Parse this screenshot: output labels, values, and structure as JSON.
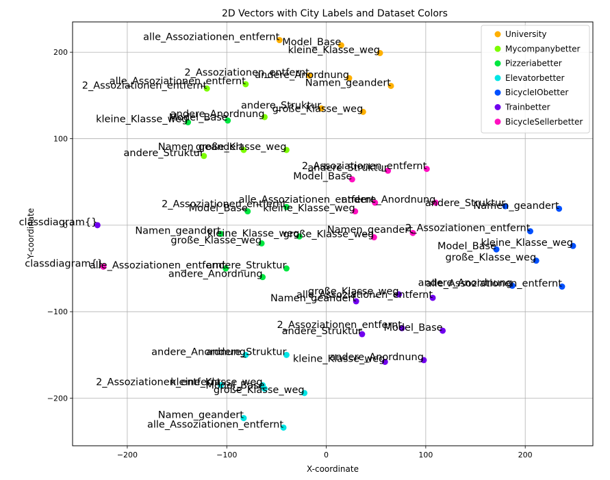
{
  "chart_data": {
    "type": "scatter",
    "title": "2D Vectors with City Labels and Dataset Colors",
    "xlabel": "X-coordinate",
    "ylabel": "Y-coordinate",
    "xlim": [
      -255,
      268
    ],
    "ylim": [
      -255,
      235
    ],
    "xticks": [
      -200,
      -100,
      0,
      100,
      200
    ],
    "yticks": [
      -200,
      -100,
      0,
      100,
      200
    ],
    "tick_labels_x": [
      "−200",
      "−100",
      "0",
      "100",
      "200"
    ],
    "tick_labels_y": [
      "−200",
      "−100",
      "0",
      "100",
      "200"
    ],
    "grid": true,
    "legend_position": "top-right",
    "series": [
      {
        "name": "University",
        "color": "#ffb000",
        "points": [
          {
            "x": -47,
            "y": 214,
            "label": "alle_Assoziationen_entfernt"
          },
          {
            "x": 15,
            "y": 208,
            "label": "Model_Base"
          },
          {
            "x": 54,
            "y": 199,
            "label": "kleine_Klasse_weg"
          },
          {
            "x": -17,
            "y": 173,
            "label": "2_Assoziationen_entfernt"
          },
          {
            "x": 23,
            "y": 170,
            "label": "andere_Anordnung"
          },
          {
            "x": 65,
            "y": 161,
            "label": "Namen_geandert"
          },
          {
            "x": -5,
            "y": 135,
            "label": "andere_Struktur"
          },
          {
            "x": 37,
            "y": 131,
            "label": "große_Klasse_weg"
          }
        ]
      },
      {
        "name": "Mycompanybetter",
        "color": "#7cfc00",
        "points": [
          {
            "x": -120,
            "y": 158,
            "label": "2_Assoziationen_entfernt"
          },
          {
            "x": -81,
            "y": 163,
            "label": "alle_Assoziationen_entfernt"
          },
          {
            "x": -62,
            "y": 125,
            "label": "andere_Anordnung"
          },
          {
            "x": -83,
            "y": 87,
            "label": "Namen_geandert"
          },
          {
            "x": -40,
            "y": 87,
            "label": "große_Klasse_weg"
          },
          {
            "x": -123,
            "y": 80,
            "label": "andere_Struktur"
          }
        ]
      },
      {
        "name": "Pizzeriabetter",
        "color": "#00e640",
        "points": [
          {
            "x": -139,
            "y": 119,
            "label": "kleine_Klasse_weg"
          },
          {
            "x": -99,
            "y": 121,
            "label": "Model_Base"
          },
          {
            "x": -40,
            "y": 21,
            "label": "2_Assoziationen_entfernt"
          },
          {
            "x": -79,
            "y": 16,
            "label": "Model_Base"
          },
          {
            "x": -106,
            "y": -10,
            "label": "Namen_geandert"
          },
          {
            "x": -65,
            "y": -21,
            "label": "große_Klasse_weg"
          },
          {
            "x": -27,
            "y": -13,
            "label": "kleine_Klasse_weg"
          },
          {
            "x": -40,
            "y": -50,
            "label": "andere_Struktur"
          },
          {
            "x": -101,
            "y": -50,
            "label": "alle_Assoziationen_entfernt"
          },
          {
            "x": -64,
            "y": -60,
            "label": "andere_Anordnung"
          }
        ]
      },
      {
        "name": "Elevatorbetter",
        "color": "#00e5e5",
        "points": [
          {
            "x": -81,
            "y": -150,
            "label": "andere_Anordnung"
          },
          {
            "x": -40,
            "y": -150,
            "label": "andere_Struktur"
          },
          {
            "x": -106,
            "y": -185,
            "label": "2_Assoziationen_entfernt"
          },
          {
            "x": -64,
            "y": -185,
            "label": "kleine_Klasse_weg"
          },
          {
            "x": -22,
            "y": -194,
            "label": "große_Klasse_weg"
          },
          {
            "x": -62,
            "y": -189,
            "label": "Model_Base"
          },
          {
            "x": -83,
            "y": -223,
            "label": "Namen_geandert"
          },
          {
            "x": -43,
            "y": -234,
            "label": "alle_Assoziationen_entfernt"
          }
        ]
      },
      {
        "name": "BicycleIObetter",
        "color": "#0050ff",
        "points": [
          {
            "x": 180,
            "y": 22,
            "label": "andere_Struktur"
          },
          {
            "x": 234,
            "y": 19,
            "label": "Namen_geandert"
          },
          {
            "x": 205,
            "y": -7,
            "label": "2_Assoziationen_entfernt"
          },
          {
            "x": 171,
            "y": -28,
            "label": "Model_Base"
          },
          {
            "x": 248,
            "y": -24,
            "label": "kleine_Klasse_weg"
          },
          {
            "x": 211,
            "y": -41,
            "label": "große_Klasse_weg"
          },
          {
            "x": 187,
            "y": -70,
            "label": "andere_Anordnung"
          },
          {
            "x": 237,
            "y": -71,
            "label": "alle_Assoziationen_entfernt"
          }
        ]
      },
      {
        "name": "Trainbetter",
        "color": "#7000ee",
        "points": [
          {
            "x": -230,
            "y": 0,
            "label": "classdiagram{}"
          },
          {
            "x": 30,
            "y": -88,
            "label": "Namen_geandert"
          },
          {
            "x": 73,
            "y": -80,
            "label": "große_Klasse_weg"
          },
          {
            "x": 107,
            "y": -84,
            "label": "alle_Assoziationen_entfernt"
          },
          {
            "x": 76,
            "y": -119,
            "label": "2_Assoziationen_entfernt"
          },
          {
            "x": 36,
            "y": -126,
            "label": "andere_Struktur"
          },
          {
            "x": 117,
            "y": -122,
            "label": "Model_Base"
          },
          {
            "x": 59,
            "y": -158,
            "label": "kleine_Klasse_weg"
          },
          {
            "x": 98,
            "y": -156,
            "label": "andere_Anordnung"
          }
        ]
      },
      {
        "name": "BicycleSellerbetter",
        "color": "#ff10c0",
        "points": [
          {
            "x": 101,
            "y": 65,
            "label": "2_Assoziationen_entfernt"
          },
          {
            "x": 62,
            "y": 63,
            "label": "andere_Struktur"
          },
          {
            "x": 26,
            "y": 53,
            "label": "Model_Base"
          },
          {
            "x": 49,
            "y": 26,
            "label": "alle_Assoziationen_entfernt"
          },
          {
            "x": 110,
            "y": 26,
            "label": "andere_Anordnung"
          },
          {
            "x": 29,
            "y": 16,
            "label": "kleine_Klasse_weg"
          },
          {
            "x": 48,
            "y": -14,
            "label": "große_Klasse_weg"
          },
          {
            "x": 87,
            "y": -9,
            "label": "Namen_geandert"
          },
          {
            "x": -224,
            "y": -48,
            "label": "classdiagram{}"
          }
        ]
      }
    ]
  }
}
